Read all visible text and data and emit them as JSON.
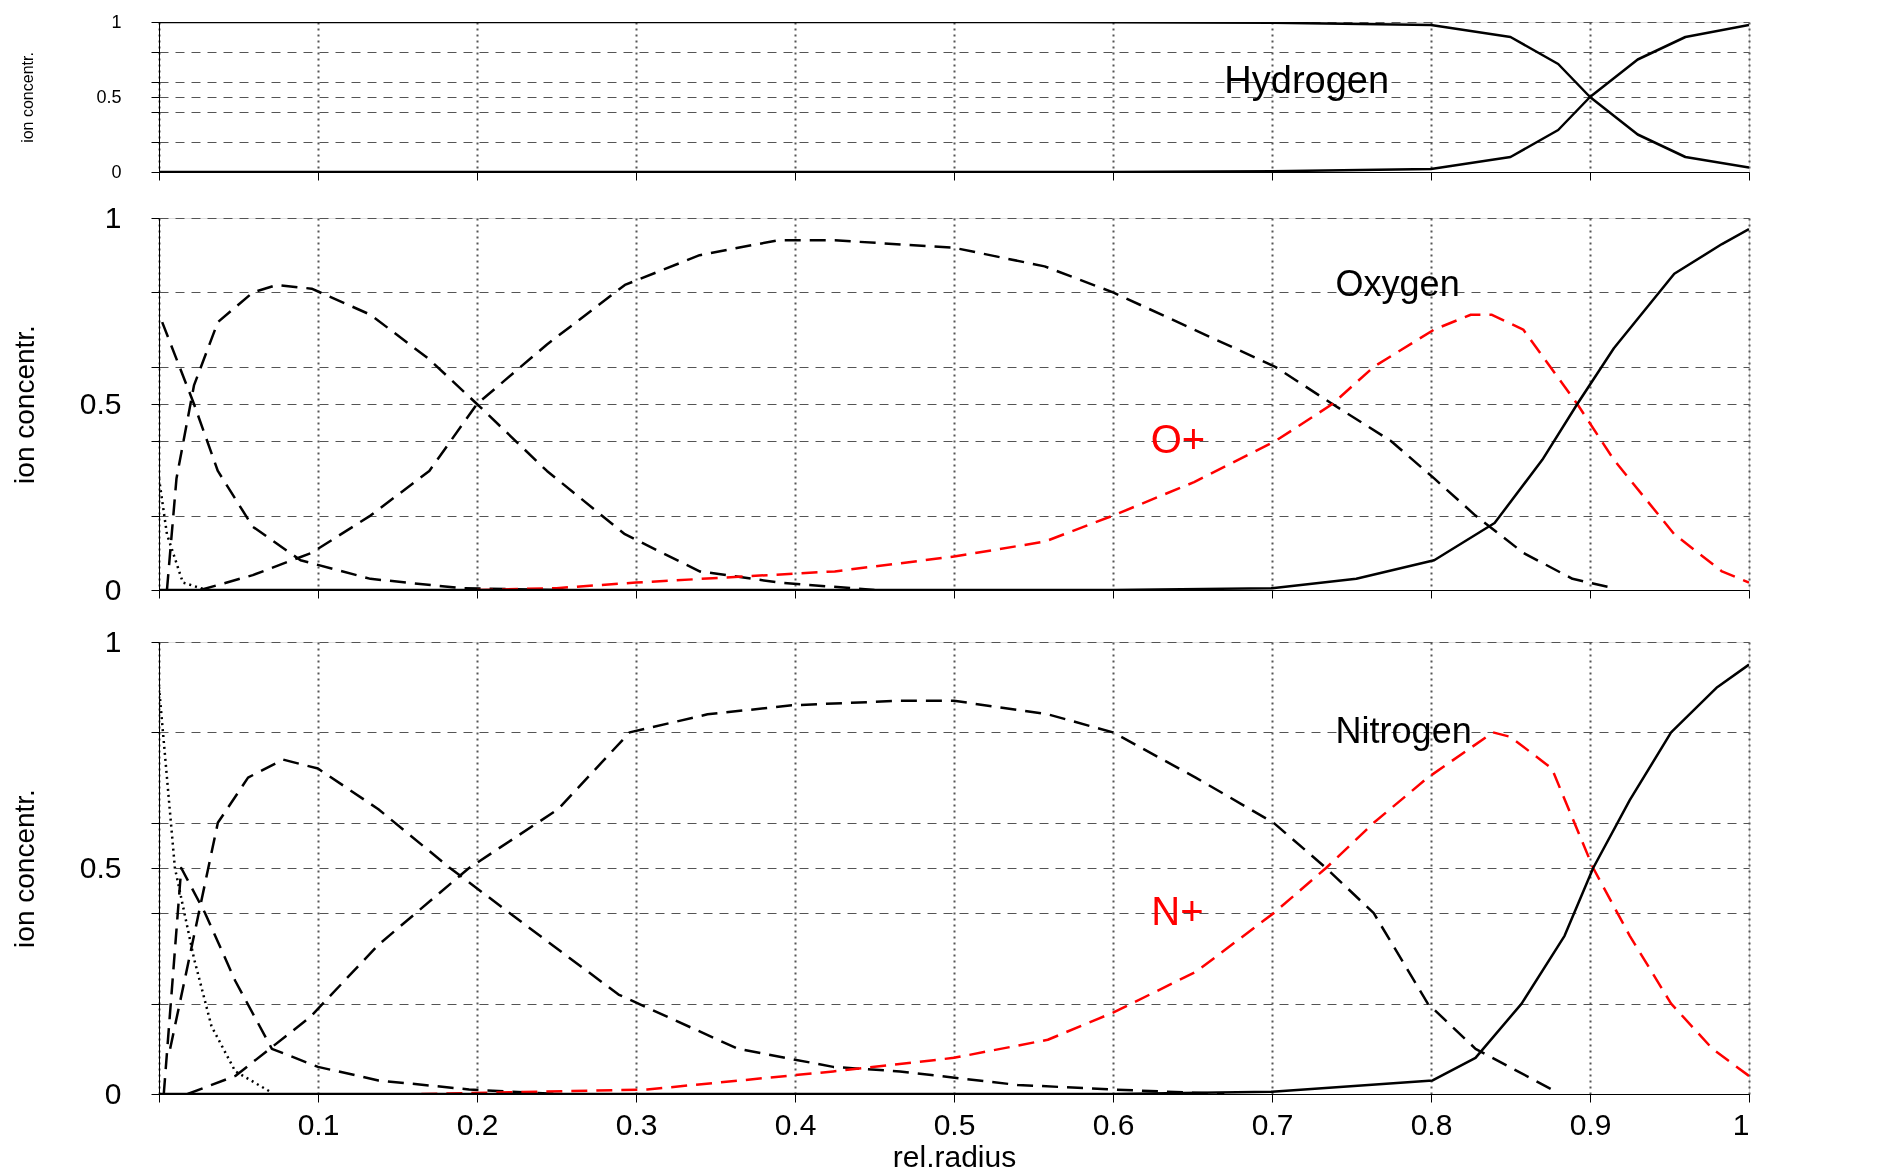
{
  "chart_data": [
    {
      "type": "line",
      "ylabel": "ion concentr.",
      "annotations": [
        "Hydrogen"
      ],
      "xlim": [
        0,
        1
      ],
      "ylim": [
        0,
        1
      ],
      "xticks": [
        {
          "value": 0,
          "label": null
        },
        {
          "value": 0.1,
          "label": null
        },
        {
          "value": 0.2,
          "label": null
        },
        {
          "value": 0.3,
          "label": null
        },
        {
          "value": 0.4,
          "label": null
        },
        {
          "value": 0.5,
          "label": null
        },
        {
          "value": 0.6,
          "label": null
        },
        {
          "value": 0.7,
          "label": null
        },
        {
          "value": 0.8,
          "label": null
        },
        {
          "value": 0.9,
          "label": null
        },
        {
          "value": 1,
          "label": null
        }
      ],
      "yticks": [
        {
          "value": 0,
          "label": "0"
        },
        {
          "value": 0.2,
          "label": null
        },
        {
          "value": 0.4,
          "label": null
        },
        {
          "value": 0.5,
          "label": "0.5"
        },
        {
          "value": 0.6,
          "label": null
        },
        {
          "value": 0.8,
          "label": null
        },
        {
          "value": 1,
          "label": "1"
        }
      ],
      "grid": true,
      "tick_labels": "y",
      "series": [
        {
          "color": "#000000",
          "line_style": "solid",
          "x": [
            0.0,
            0.55,
            0.7,
            0.8,
            0.85,
            0.88,
            0.9,
            0.93,
            0.96,
            1.0
          ],
          "values": [
            1.0,
            1.0,
            0.995,
            0.98,
            0.9,
            0.72,
            0.5,
            0.25,
            0.1,
            0.03
          ]
        },
        {
          "color": "#000000",
          "line_style": "solid",
          "x": [
            0.0,
            0.6,
            0.7,
            0.8,
            0.85,
            0.88,
            0.9,
            0.93,
            0.96,
            1.0
          ],
          "values": [
            0.0,
            0.0,
            0.005,
            0.02,
            0.1,
            0.28,
            0.5,
            0.75,
            0.9,
            0.98
          ]
        }
      ]
    },
    {
      "type": "line",
      "ylabel": "ion concentr.",
      "annotations": [
        "Oxygen"
      ],
      "xlim": [
        0,
        1
      ],
      "ylim": [
        0,
        1
      ],
      "xticks": [
        {
          "value": 0,
          "label": null
        },
        {
          "value": 0.1,
          "label": null
        },
        {
          "value": 0.2,
          "label": null
        },
        {
          "value": 0.3,
          "label": null
        },
        {
          "value": 0.4,
          "label": null
        },
        {
          "value": 0.5,
          "label": null
        },
        {
          "value": 0.6,
          "label": null
        },
        {
          "value": 0.7,
          "label": null
        },
        {
          "value": 0.8,
          "label": null
        },
        {
          "value": 0.9,
          "label": null
        },
        {
          "value": 1,
          "label": null
        }
      ],
      "yticks": [
        {
          "value": 0,
          "label": "0"
        },
        {
          "value": 0.2,
          "label": null
        },
        {
          "value": 0.4,
          "label": null
        },
        {
          "value": 0.5,
          "label": "0.5"
        },
        {
          "value": 0.6,
          "label": null
        },
        {
          "value": 0.8,
          "label": null
        },
        {
          "value": 1,
          "label": "1"
        }
      ],
      "grid": true,
      "tick_labels": "y",
      "series": [
        {
          "color": "#000000",
          "line_style": "dotted",
          "x": [
            0.0,
            0.005,
            0.015,
            0.03
          ],
          "values": [
            0.3,
            0.15,
            0.02,
            0.0
          ]
        },
        {
          "color": "#000000",
          "line_style": "dashed",
          "x": [
            0.002,
            0.022,
            0.037,
            0.059,
            0.089,
            0.133,
            0.19,
            0.25
          ],
          "values": [
            0.72,
            0.5,
            0.32,
            0.17,
            0.08,
            0.03,
            0.005,
            0.0
          ]
        },
        {
          "color": "#000000",
          "line_style": "dashed",
          "x": [
            0.005,
            0.011,
            0.022,
            0.037,
            0.059,
            0.074,
            0.096,
            0.133,
            0.17,
            0.2,
            0.244,
            0.293,
            0.34,
            0.39,
            0.45
          ],
          "values": [
            0.0,
            0.3,
            0.55,
            0.72,
            0.8,
            0.82,
            0.81,
            0.74,
            0.62,
            0.5,
            0.32,
            0.15,
            0.05,
            0.02,
            0.0
          ]
        },
        {
          "color": "#000000",
          "line_style": "dashed",
          "x": [
            0.026,
            0.059,
            0.096,
            0.133,
            0.17,
            0.2,
            0.244,
            0.293,
            0.34,
            0.389,
            0.425,
            0.5,
            0.557,
            0.6,
            0.651,
            0.702,
            0.738,
            0.775,
            0.802,
            0.828,
            0.858,
            0.889,
            0.915
          ],
          "values": [
            0.0,
            0.04,
            0.1,
            0.2,
            0.32,
            0.5,
            0.66,
            0.82,
            0.9,
            0.94,
            0.94,
            0.92,
            0.87,
            0.8,
            0.7,
            0.6,
            0.5,
            0.4,
            0.3,
            0.2,
            0.1,
            0.03,
            0.005
          ]
        },
        {
          "name": "O+",
          "color": "#ff0000",
          "line_style": "dashed",
          "x": [
            0.2,
            0.25,
            0.3,
            0.425,
            0.5,
            0.557,
            0.6,
            0.651,
            0.702,
            0.738,
            0.764,
            0.802,
            0.825,
            0.838,
            0.858,
            0.892,
            0.915,
            0.953,
            0.983,
            1.0
          ],
          "values": [
            0.0,
            0.005,
            0.02,
            0.05,
            0.09,
            0.13,
            0.2,
            0.29,
            0.4,
            0.5,
            0.6,
            0.7,
            0.74,
            0.74,
            0.7,
            0.5,
            0.35,
            0.15,
            0.05,
            0.02
          ]
        },
        {
          "color": "#000000",
          "line_style": "solid",
          "x": [
            0.0,
            0.6,
            0.7,
            0.753,
            0.802,
            0.84,
            0.87,
            0.892,
            0.915,
            0.953,
            0.983,
            1.0
          ],
          "values": [
            0.0,
            0.0,
            0.005,
            0.03,
            0.08,
            0.18,
            0.35,
            0.5,
            0.65,
            0.85,
            0.93,
            0.97
          ]
        }
      ]
    },
    {
      "type": "line",
      "ylabel": "ion concentr.",
      "xlabel": "rel.radius",
      "annotations": [
        "Nitrogen"
      ],
      "xlim": [
        0,
        1
      ],
      "ylim": [
        0,
        1
      ],
      "xticks": [
        {
          "value": 0,
          "label": null
        },
        0.1,
        0.2,
        0.3,
        0.4,
        0.5,
        0.6,
        0.7,
        0.8,
        0.9,
        1
      ],
      "yticks": [
        {
          "value": 0,
          "label": "0"
        },
        {
          "value": 0.2,
          "label": null
        },
        {
          "value": 0.4,
          "label": null
        },
        {
          "value": 0.5,
          "label": "0.5"
        },
        {
          "value": 0.6,
          "label": null
        },
        {
          "value": 0.8,
          "label": null
        },
        {
          "value": 1,
          "label": "1"
        }
      ],
      "grid": true,
      "series": [
        {
          "color": "#000000",
          "line_style": "dotted",
          "x": [
            0.0,
            0.005,
            0.01,
            0.022,
            0.033,
            0.048,
            0.07
          ],
          "values": [
            0.9,
            0.7,
            0.5,
            0.3,
            0.15,
            0.05,
            0.005
          ]
        },
        {
          "color": "#000000",
          "line_style": "dashed",
          "x": [
            0.003,
            0.014,
            0.029,
            0.048,
            0.071,
            0.1,
            0.138,
            0.195,
            0.25
          ],
          "values": [
            0.0,
            0.5,
            0.4,
            0.25,
            0.1,
            0.06,
            0.03,
            0.01,
            0.0
          ]
        },
        {
          "color": "#000000",
          "line_style": "dashed",
          "x": [
            0.007,
            0.022,
            0.037,
            0.056,
            0.078,
            0.1,
            0.138,
            0.183,
            0.232,
            0.289,
            0.364,
            0.424,
            0.466,
            0.54,
            0.6,
            0.67
          ],
          "values": [
            0.1,
            0.35,
            0.6,
            0.7,
            0.74,
            0.72,
            0.63,
            0.5,
            0.37,
            0.22,
            0.1,
            0.06,
            0.05,
            0.02,
            0.01,
            0.0
          ]
        },
        {
          "color": "#000000",
          "line_style": "dashed",
          "x": [
            0.018,
            0.048,
            0.095,
            0.138,
            0.195,
            0.251,
            0.296,
            0.345,
            0.398,
            0.466,
            0.5,
            0.559,
            0.6,
            0.652,
            0.701,
            0.734,
            0.764,
            0.798,
            0.828,
            0.876
          ],
          "values": [
            0.0,
            0.04,
            0.17,
            0.33,
            0.5,
            0.63,
            0.8,
            0.84,
            0.86,
            0.87,
            0.87,
            0.84,
            0.8,
            0.7,
            0.6,
            0.5,
            0.4,
            0.2,
            0.1,
            0.01
          ]
        },
        {
          "name": "N+",
          "color": "#ff0000",
          "line_style": "dashed",
          "x": [
            0.165,
            0.307,
            0.424,
            0.5,
            0.559,
            0.6,
            0.652,
            0.701,
            0.734,
            0.764,
            0.798,
            0.839,
            0.85,
            0.876,
            0.902,
            0.925,
            0.951,
            0.977,
            1.0
          ],
          "values": [
            0.0,
            0.01,
            0.05,
            0.08,
            0.12,
            0.18,
            0.27,
            0.4,
            0.5,
            0.6,
            0.7,
            0.8,
            0.79,
            0.72,
            0.5,
            0.35,
            0.2,
            0.1,
            0.04
          ]
        },
        {
          "color": "#000000",
          "line_style": "solid",
          "x": [
            0.0,
            0.6,
            0.7,
            0.801,
            0.828,
            0.857,
            0.884,
            0.902,
            0.925,
            0.951,
            0.98,
            1.0
          ],
          "values": [
            0.0,
            0.0,
            0.005,
            0.03,
            0.08,
            0.2,
            0.35,
            0.5,
            0.65,
            0.8,
            0.9,
            0.95
          ]
        }
      ]
    }
  ]
}
